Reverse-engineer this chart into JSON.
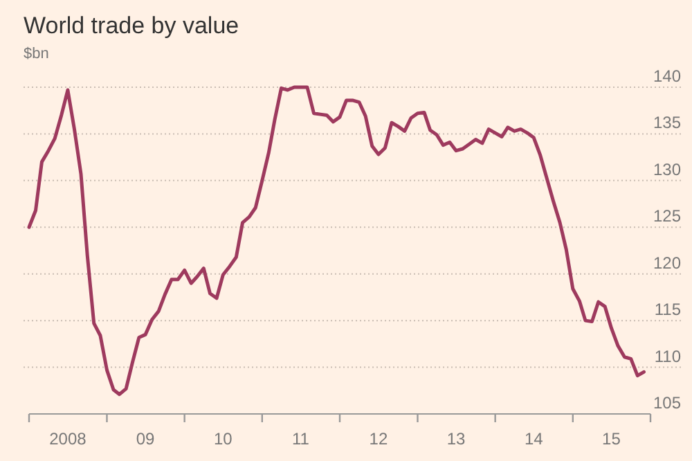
{
  "chart_data": {
    "type": "line",
    "title": "World trade by value",
    "subtitle": "$bn",
    "x": [
      "2008-01",
      "2008-02",
      "2008-03",
      "2008-04",
      "2008-05",
      "2008-06",
      "2008-07",
      "2008-08",
      "2008-09",
      "2008-10",
      "2008-11",
      "2008-12",
      "2009-01",
      "2009-02",
      "2009-03",
      "2009-04",
      "2009-05",
      "2009-06",
      "2009-07",
      "2009-08",
      "2009-09",
      "2009-10",
      "2009-11",
      "2009-12",
      "2010-01",
      "2010-02",
      "2010-03",
      "2010-04",
      "2010-05",
      "2010-06",
      "2010-07",
      "2010-08",
      "2010-09",
      "2010-10",
      "2010-11",
      "2010-12",
      "2011-01",
      "2011-02",
      "2011-03",
      "2011-04",
      "2011-05",
      "2011-06",
      "2011-07",
      "2011-08",
      "2011-09",
      "2011-10",
      "2011-11",
      "2011-12",
      "2012-01",
      "2012-02",
      "2012-03",
      "2012-04",
      "2012-05",
      "2012-06",
      "2012-07",
      "2012-08",
      "2012-09",
      "2012-10",
      "2012-11",
      "2012-12",
      "2013-01",
      "2013-02",
      "2013-03",
      "2013-04",
      "2013-05",
      "2013-06",
      "2013-07",
      "2013-08",
      "2013-09",
      "2013-10",
      "2013-11",
      "2013-12",
      "2014-01",
      "2014-02",
      "2014-03",
      "2014-04",
      "2014-05",
      "2014-06",
      "2014-07",
      "2014-08",
      "2014-09",
      "2014-10",
      "2014-11",
      "2014-12",
      "2015-01",
      "2015-02",
      "2015-03",
      "2015-04",
      "2015-05",
      "2015-06",
      "2015-07",
      "2015-08",
      "2015-09",
      "2015-10",
      "2015-11",
      "2015-12"
    ],
    "series": [
      {
        "color": "#9e3a5e",
        "values": [
          125.0,
          126.8,
          132.0,
          133.2,
          134.5,
          137.0,
          139.7,
          135.5,
          130.7,
          122.0,
          114.7,
          113.4,
          109.7,
          107.6,
          107.1,
          107.7,
          110.5,
          113.2,
          113.5,
          115.1,
          116.0,
          117.8,
          119.4,
          119.4,
          120.4,
          119.0,
          119.7,
          120.6,
          117.9,
          117.4,
          119.9,
          120.8,
          121.8,
          125.5,
          126.1,
          127.1,
          130.0,
          133.0,
          136.5,
          139.9,
          139.7,
          140.0,
          140.0,
          140.0,
          137.2,
          137.1,
          137.0,
          136.3,
          136.8,
          138.6,
          138.6,
          138.4,
          136.9,
          133.7,
          132.8,
          133.5,
          136.2,
          135.8,
          135.3,
          136.7,
          137.2,
          137.3,
          135.4,
          134.9,
          133.8,
          134.1,
          133.2,
          133.4,
          133.9,
          134.4,
          134.0,
          135.5,
          135.1,
          134.7,
          135.7,
          135.3,
          135.5,
          135.1,
          134.6,
          132.7,
          130.2,
          127.8,
          125.5,
          122.6,
          118.4,
          117.1,
          115.0,
          114.9,
          117.0,
          116.5,
          114.2,
          112.3,
          111.1,
          110.9,
          109.1,
          109.5
        ]
      }
    ],
    "xlim": [
      "2008-01",
      "2016-01"
    ],
    "xticks": [
      {
        "value": "2008-01",
        "label": null
      },
      {
        "value": "2008-07",
        "label": "2008"
      },
      {
        "value": "2009-01",
        "label": null
      },
      {
        "value": "2009-07",
        "label": "09"
      },
      {
        "value": "2010-01",
        "label": null
      },
      {
        "value": "2010-07",
        "label": "10"
      },
      {
        "value": "2011-01",
        "label": null
      },
      {
        "value": "2011-07",
        "label": "11"
      },
      {
        "value": "2012-01",
        "label": null
      },
      {
        "value": "2012-07",
        "label": "12"
      },
      {
        "value": "2013-01",
        "label": null
      },
      {
        "value": "2013-07",
        "label": "13"
      },
      {
        "value": "2014-01",
        "label": null
      },
      {
        "value": "2014-07",
        "label": "14"
      },
      {
        "value": "2015-01",
        "label": null
      },
      {
        "value": "2015-07",
        "label": "15"
      },
      {
        "value": "2016-01",
        "label": null
      }
    ],
    "ylim": [
      105,
      140
    ],
    "yticks": [
      105,
      110,
      115,
      120,
      125,
      130,
      135,
      140
    ],
    "grid": "y",
    "line_style": "solid",
    "marker": "none"
  }
}
